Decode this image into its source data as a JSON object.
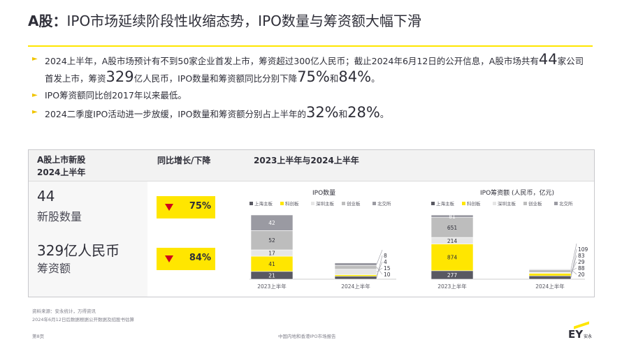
{
  "header": {
    "title_bold": "A股：",
    "title_rest": "IPO市场延续阶段性收缩态势，IPO数量与筹资额大幅下滑"
  },
  "bullets": {
    "b1": {
      "p1": "2024上半年，A股市场预计有不到50家企业首发上市，筹资超过300亿人民币；截止2024年6月12日的公开信息，A股市场共有",
      "n1": "44",
      "p2": "家公司首发上市，筹资",
      "n2": "329",
      "p3": "亿人民币，IPO数量和筹资额同比分别下降",
      "n3": "75%",
      "p4": "和",
      "n4": "84%",
      "p5": "。"
    },
    "b2": {
      "text": "IPO筹资额同比创2017年以来最低。"
    },
    "b3": {
      "p1": "2024二季度IPO活动进一步放缓，IPO数量和筹资额分别占上半年的",
      "n1": "32%",
      "p2": "和",
      "n2": "28%",
      "p3": "。"
    }
  },
  "panel": {
    "col1_line1": "A股上市新股",
    "col1_line2": "2024上半年",
    "col2": "同比增长/下降",
    "col3": "2023上半年与2024上半年",
    "metrics": [
      {
        "value": "44",
        "label": "新股数量",
        "change": "75%"
      },
      {
        "value": "329亿人民币",
        "label": "筹资额",
        "change": "84%"
      }
    ]
  },
  "colors": {
    "accent": "#ffe600",
    "down": "#d0021b",
    "text": "#2e2e38",
    "series": [
      "#595962",
      "#ffe600",
      "#e6e6e6",
      "#bdbdbd",
      "#9a9aa2"
    ]
  },
  "chart_data": [
    {
      "type": "bar",
      "stacked": true,
      "title": "IPO数量",
      "categories": [
        "2023上半年",
        "2024上半年"
      ],
      "series": [
        {
          "name": "上海主板",
          "values": [
            21,
            8
          ]
        },
        {
          "name": "科创板",
          "values": [
            41,
            4
          ]
        },
        {
          "name": "深圳主板",
          "values": [
            17,
            15
          ]
        },
        {
          "name": "创业板",
          "values": [
            52,
            10
          ]
        },
        {
          "name": "北交所",
          "values": [
            42,
            7
          ]
        }
      ],
      "labeled_values": [
        [
          "21",
          "41",
          "17",
          "52",
          "42"
        ],
        [
          "8",
          "4",
          "15",
          "10",
          ""
        ]
      ],
      "legend": "top"
    },
    {
      "type": "bar",
      "stacked": true,
      "title": "IPO筹资额 (人民币，亿元)",
      "categories": [
        "2023上半年",
        "2024上半年"
      ],
      "series": [
        {
          "name": "上海主板",
          "values": [
            277,
            109
          ]
        },
        {
          "name": "科创板",
          "values": [
            874,
            83
          ]
        },
        {
          "name": "深圳主板",
          "values": [
            214,
            29
          ]
        },
        {
          "name": "创业板",
          "values": [
            651,
            88
          ]
        },
        {
          "name": "北交所",
          "values": [
            81,
            20
          ]
        }
      ],
      "labeled_values": [
        [
          "277",
          "874",
          "214",
          "651",
          "81"
        ],
        [
          "109",
          "83",
          "29",
          "88",
          "20"
        ]
      ],
      "legend": "top"
    }
  ],
  "footer": {
    "source1": "资料来源：安永统计，万得资讯",
    "source2": "2024年6月12日后数据根据公开数据及招股书估算",
    "page": "第8页",
    "report": "中国内地和香港IPO市场报告",
    "logo": "EY",
    "logo_sub": "安永"
  }
}
